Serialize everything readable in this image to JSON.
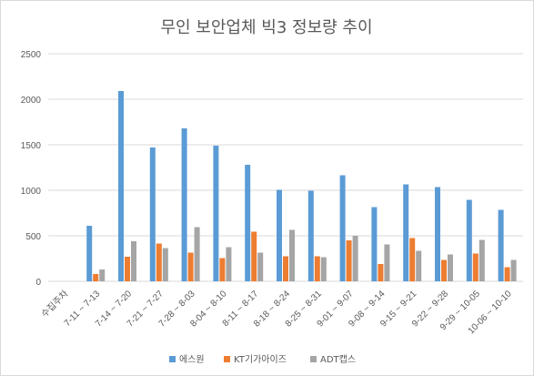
{
  "chart_data": {
    "type": "bar",
    "title": "무인 보안업체 빅3 정보량 추이",
    "xlabel": "",
    "ylabel": "",
    "ylim": [
      0,
      2500
    ],
    "yticks": [
      0,
      500,
      1000,
      1500,
      2000,
      2500
    ],
    "grid": true,
    "legend_position": "bottom",
    "categories": [
      "수집주차",
      "7-11 ~ 7-13",
      "7-14 ~ 7-20",
      "7-21 ~ 7-27",
      "7-28 ~ 8-03",
      "8-04 ~ 8-10",
      "8-11 ~ 8-17",
      "8-18 ~ 8-24",
      "8-25 ~ 8-31",
      "9-01 ~ 9-07",
      "9-08 ~ 9-14",
      "9-15 ~ 9-21",
      "9-22 ~ 9-28",
      "9-29 ~ 10-05",
      "10-06 ~ 10-10"
    ],
    "series": [
      {
        "name": "에스원",
        "color": "#5b9bd5",
        "values": [
          null,
          610,
          2090,
          1470,
          1680,
          1490,
          1280,
          1005,
          995,
          1165,
          815,
          1065,
          1035,
          895,
          785
        ]
      },
      {
        "name": "KT기가아이즈",
        "color": "#ed7d31",
        "values": [
          null,
          80,
          270,
          415,
          315,
          255,
          545,
          275,
          275,
          450,
          190,
          475,
          235,
          305,
          155
        ]
      },
      {
        "name": "ADT캡스",
        "color": "#a5a5a5",
        "values": [
          null,
          130,
          440,
          365,
          595,
          375,
          315,
          565,
          265,
          500,
          405,
          335,
          295,
          455,
          235
        ]
      }
    ]
  }
}
